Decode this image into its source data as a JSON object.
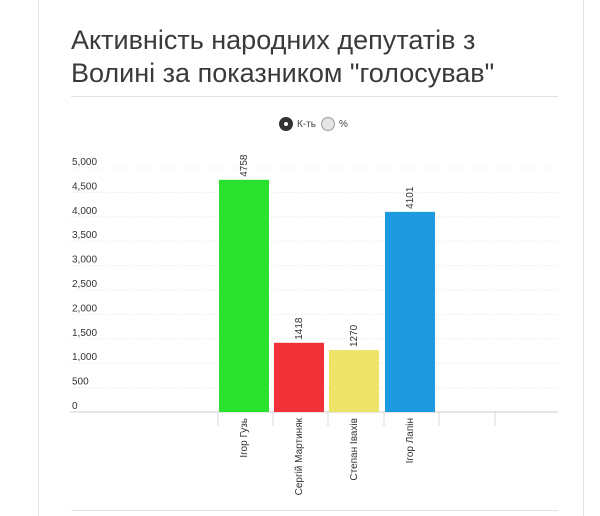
{
  "title": "Активність народних депутатів з Волині за показником \"голосував\"",
  "toggle": {
    "count_label": "К-ть",
    "percent_label": "%",
    "selected": "count"
  },
  "chart_data": {
    "type": "bar",
    "title": "Активність народних депутатів з Волині за показником \"голосував\"",
    "xlabel": "",
    "ylabel": "",
    "ylim": [
      0,
      5000
    ],
    "yticks": [
      0,
      500,
      1000,
      1500,
      2000,
      2500,
      3000,
      3500,
      4000,
      4500,
      5000
    ],
    "ytick_labels": [
      "0",
      "500",
      "1,000",
      "1,500",
      "2,000",
      "2,500",
      "3,000",
      "3,500",
      "4,000",
      "4,500",
      "5,000"
    ],
    "grid": true,
    "categories": [
      "Ігор Гузь",
      "Сергій Мартиняк",
      "Степан Івахів",
      "Ігор Лапін"
    ],
    "values": [
      4758,
      1418,
      1270,
      4101
    ],
    "value_labels": [
      "4758",
      "1418",
      "1270",
      "4101"
    ],
    "colors": [
      "#28e22e",
      "#f03238",
      "#efe46a",
      "#1e9ae0"
    ]
  }
}
